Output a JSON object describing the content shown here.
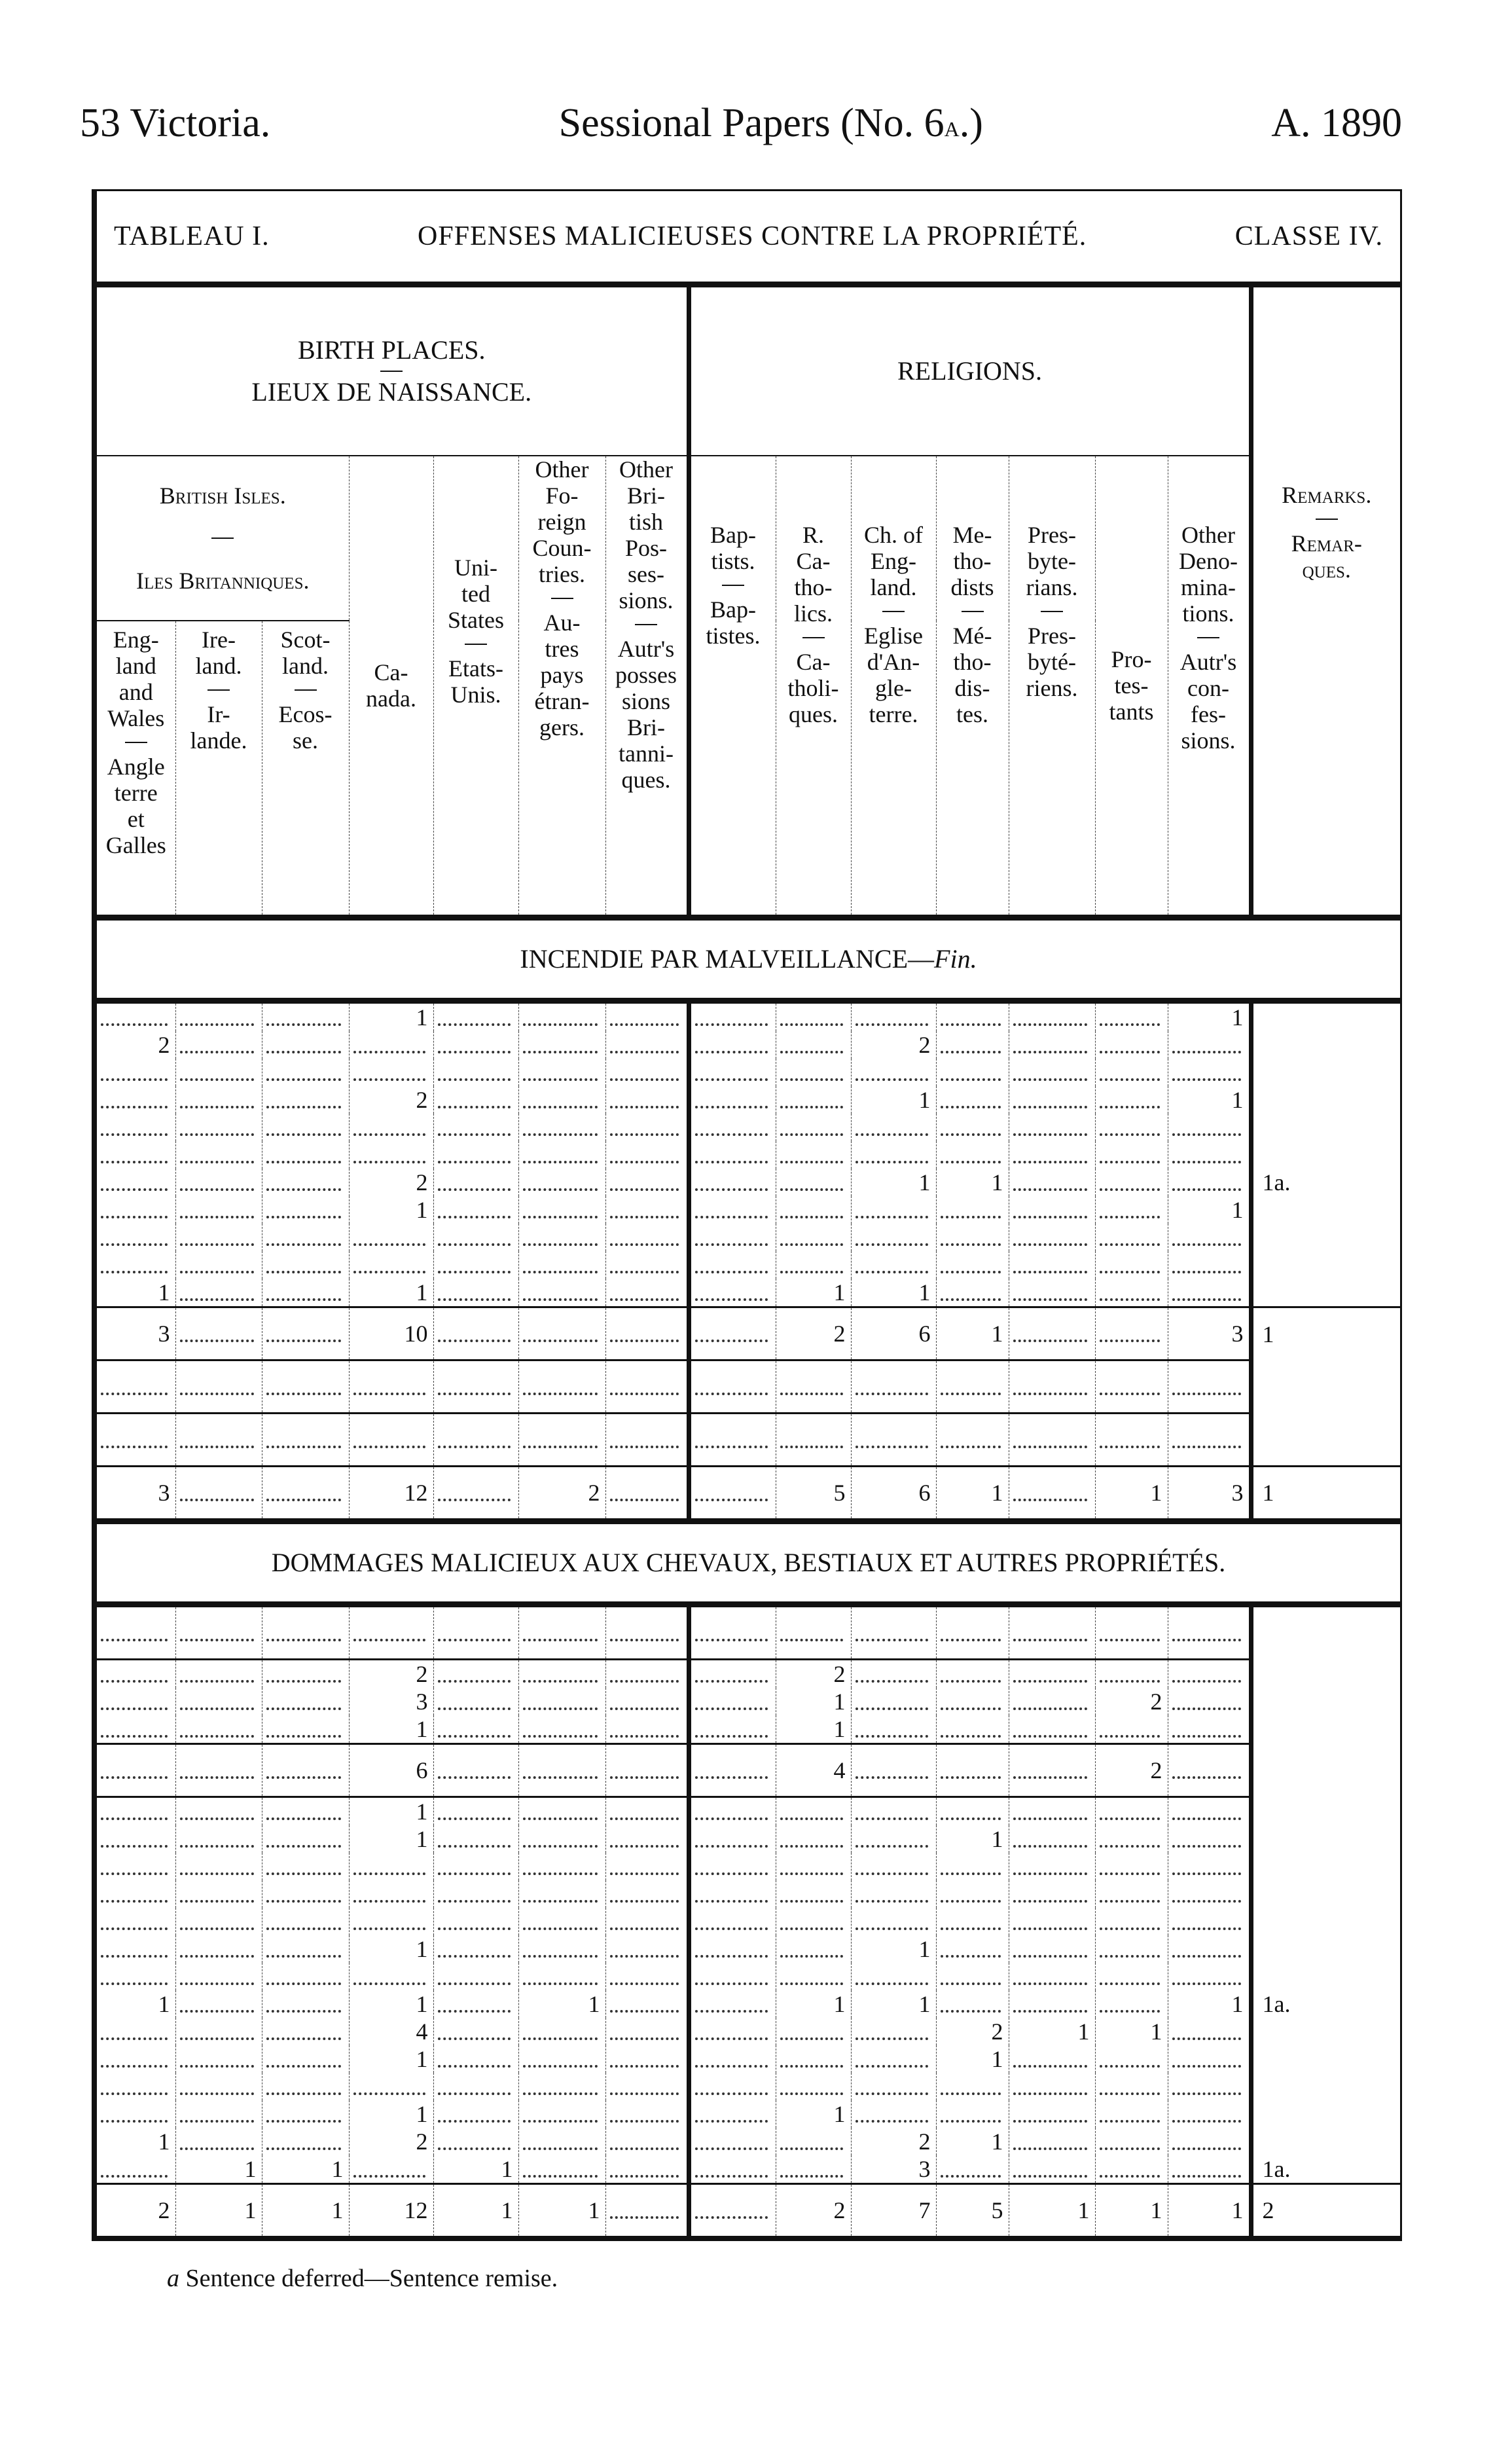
{
  "running_head": {
    "left": "53 Victoria.",
    "center_pre": "Sessional Papers (No. 6",
    "center_sc": "a",
    "center_post": ".)",
    "right": "A. 1890"
  },
  "title": {
    "table": "TABLEAU I.",
    "offense": "OFFENSES MALICIEUSES CONTRE LA PROPRIÉTÉ.",
    "class": "CLASSE IV."
  },
  "birth_places": {
    "en": "BIRTH PLACES.",
    "fr": "LIEUX DE NAISSANCE."
  },
  "religions": "RELIGIONS.",
  "british_isles": {
    "en": "British Isles.",
    "fr": "Iles Britanniques."
  },
  "columns": [
    {
      "en": "Eng-\nland\nand\nWales",
      "fr": "Angle\nterre\net\nGalles"
    },
    {
      "en": "Ire-\nland.",
      "fr": "Ir-\nlande."
    },
    {
      "en": "Scot-\nland.",
      "fr": "Ecos-\nse."
    },
    {
      "en": "Ca-\nnada.",
      "fr": ""
    },
    {
      "en": "Uni-\nted\nStates",
      "fr": "Etats-\nUnis."
    },
    {
      "en": "Other\nFo-\nreign\nCoun-\ntries.",
      "fr": "Au-\ntres\npays\nétran-\ngers."
    },
    {
      "en": "Other\nBri-\ntish\nPos-\nses-\nsions.",
      "fr": "Autr's\nposses\nsions\nBri-\ntanni-\nques."
    },
    {
      "en": "Bap-\ntists.",
      "fr": "Bap-\ntistes."
    },
    {
      "en": "R.\nCa-\ntho-\nlics.",
      "fr": "Ca-\ntholi-\nques."
    },
    {
      "en": "Ch. of\nEng-\nland.",
      "fr": "Eglise\nd'An-\ngle-\nterre."
    },
    {
      "en": "Me-\ntho-\ndists",
      "fr": "Mé-\ntho-\ndis-\ntes."
    },
    {
      "en": "Pres-\nbyte-\nrians.",
      "fr": "Pres-\nbyté-\nriens."
    },
    {
      "en": "Pro-\ntes-\ntants",
      "fr": ""
    },
    {
      "en": "Other\nDeno-\nmina-\ntions.",
      "fr": "Autr's\ncon-\nfes-\nsions."
    },
    {
      "en": "Remarks.",
      "fr": "Remar-\nques."
    }
  ],
  "sections": [
    {
      "heading": "INCENDIE PAR MALVEILLANCE—",
      "heading_italic": "Fin.",
      "groups": [
        {
          "rows": [
            [
              "",
              "",
              "",
              "1",
              "",
              "",
              "",
              "",
              "",
              "",
              "",
              "",
              "",
              "1",
              ""
            ],
            [
              "2",
              "",
              "",
              "",
              "",
              "",
              "",
              "",
              "",
              "2",
              "",
              "",
              "",
              "",
              ""
            ],
            [
              "",
              "",
              "",
              "",
              "",
              "",
              "",
              "",
              "",
              "",
              "",
              "",
              "",
              "",
              ""
            ],
            [
              "",
              "",
              "",
              "2",
              "",
              "",
              "",
              "",
              "",
              "1",
              "",
              "",
              "",
              "1",
              ""
            ],
            [
              "",
              "",
              "",
              "",
              "",
              "",
              "",
              "",
              "",
              "",
              "",
              "",
              "",
              "",
              ""
            ],
            [
              "",
              "",
              "",
              "",
              "",
              "",
              "",
              "",
              "",
              "",
              "",
              "",
              "",
              "",
              ""
            ],
            [
              "",
              "",
              "",
              "2",
              "",
              "",
              "",
              "",
              "",
              "1",
              "1",
              "",
              "",
              "",
              "1a."
            ],
            [
              "",
              "",
              "",
              "1",
              "",
              "",
              "",
              "",
              "",
              "",
              "",
              "",
              "",
              "1",
              ""
            ],
            [
              "",
              "",
              "",
              "",
              "",
              "",
              "",
              "",
              "",
              "",
              "",
              "",
              "",
              "",
              ""
            ],
            [
              "",
              "",
              "",
              "",
              "",
              "",
              "",
              "",
              "",
              "",
              "",
              "",
              "",
              "",
              ""
            ],
            [
              "1",
              "",
              "",
              "1",
              "",
              "",
              "",
              "",
              "1",
              "1",
              "",
              "",
              "",
              "",
              ""
            ]
          ]
        },
        {
          "rows": [
            [
              "3",
              "",
              "",
              "10",
              "",
              "",
              "",
              "",
              "2",
              "6",
              "1",
              "",
              "",
              "3",
              "1"
            ]
          ]
        },
        {
          "rows": [
            [
              "",
              "",
              "",
              "",
              "",
              "",
              "",
              "",
              "",
              "",
              "",
              "",
              "",
              "",
              ""
            ]
          ]
        },
        {
          "rows": [
            [
              "",
              "",
              "",
              "",
              "",
              "",
              "",
              "",
              "",
              "",
              "",
              "",
              "",
              "",
              ""
            ]
          ]
        },
        {
          "rows": [
            [
              "3",
              "",
              "",
              "12",
              "",
              "2",
              "",
              "",
              "5",
              "6",
              "1",
              "",
              "1",
              "3",
              "1"
            ]
          ]
        }
      ]
    },
    {
      "heading": "DOMMAGES MALICIEUX AUX CHEVAUX, BESTIAUX ET AUTRES PROPRIÉTÉS.",
      "heading_italic": "",
      "groups": [
        {
          "rows": [
            [
              "",
              "",
              "",
              "",
              "",
              "",
              "",
              "",
              "",
              "",
              "",
              "",
              "",
              "",
              ""
            ]
          ]
        },
        {
          "rows": [
            [
              "",
              "",
              "",
              "2",
              "",
              "",
              "",
              "",
              "2",
              "",
              "",
              "",
              "",
              "",
              ""
            ],
            [
              "",
              "",
              "",
              "3",
              "",
              "",
              "",
              "",
              "1",
              "",
              "",
              "",
              "2",
              "",
              ""
            ],
            [
              "",
              "",
              "",
              "1",
              "",
              "",
              "",
              "",
              "1",
              "",
              "",
              "",
              "",
              "",
              ""
            ]
          ]
        },
        {
          "rows": [
            [
              "",
              "",
              "",
              "6",
              "",
              "",
              "",
              "",
              "4",
              "",
              "",
              "",
              "2",
              "",
              ""
            ]
          ]
        },
        {
          "rows": [
            [
              "",
              "",
              "",
              "1",
              "",
              "",
              "",
              "",
              "",
              "",
              "",
              "",
              "",
              "",
              ""
            ],
            [
              "",
              "",
              "",
              "1",
              "",
              "",
              "",
              "",
              "",
              "",
              "1",
              "",
              "",
              "",
              ""
            ],
            [
              "",
              "",
              "",
              "",
              "",
              "",
              "",
              "",
              "",
              "",
              "",
              "",
              "",
              "",
              ""
            ],
            [
              "",
              "",
              "",
              "",
              "",
              "",
              "",
              "",
              "",
              "",
              "",
              "",
              "",
              "",
              ""
            ],
            [
              "",
              "",
              "",
              "",
              "",
              "",
              "",
              "",
              "",
              "",
              "",
              "",
              "",
              "",
              ""
            ],
            [
              "",
              "",
              "",
              "1",
              "",
              "",
              "",
              "",
              "",
              "1",
              "",
              "",
              "",
              "",
              ""
            ],
            [
              "",
              "",
              "",
              "",
              "",
              "",
              "",
              "",
              "",
              "",
              "",
              "",
              "",
              "",
              ""
            ],
            [
              "1",
              "",
              "",
              "1",
              "",
              "1",
              "",
              "",
              "1",
              "1",
              "",
              "",
              "",
              "1",
              "1a."
            ],
            [
              "",
              "",
              "",
              "4",
              "",
              "",
              "",
              "",
              "",
              "",
              "2",
              "1",
              "1",
              "",
              ""
            ],
            [
              "",
              "",
              "",
              "1",
              "",
              "",
              "",
              "",
              "",
              "",
              "1",
              "",
              "",
              "",
              ""
            ],
            [
              "",
              "",
              "",
              "",
              "",
              "",
              "",
              "",
              "",
              "",
              "",
              "",
              "",
              "",
              ""
            ],
            [
              "",
              "",
              "",
              "1",
              "",
              "",
              "",
              "",
              "1",
              "",
              "",
              "",
              "",
              "",
              ""
            ],
            [
              "1",
              "",
              "",
              "2",
              "",
              "",
              "",
              "",
              "",
              "2",
              "1",
              "",
              "",
              "",
              ""
            ],
            [
              "",
              "1",
              "1",
              "",
              "1",
              "",
              "",
              "",
              "",
              "3",
              "",
              "",
              "",
              "",
              "1a."
            ]
          ]
        },
        {
          "rows": [
            [
              "2",
              "1",
              "1",
              "12",
              "1",
              "1",
              "",
              "",
              "2",
              "7",
              "5",
              "1",
              "1",
              "1",
              "2"
            ]
          ]
        }
      ]
    }
  ],
  "footnote": {
    "mark": "a",
    "text": " Sentence deferred—Sentence remise."
  }
}
